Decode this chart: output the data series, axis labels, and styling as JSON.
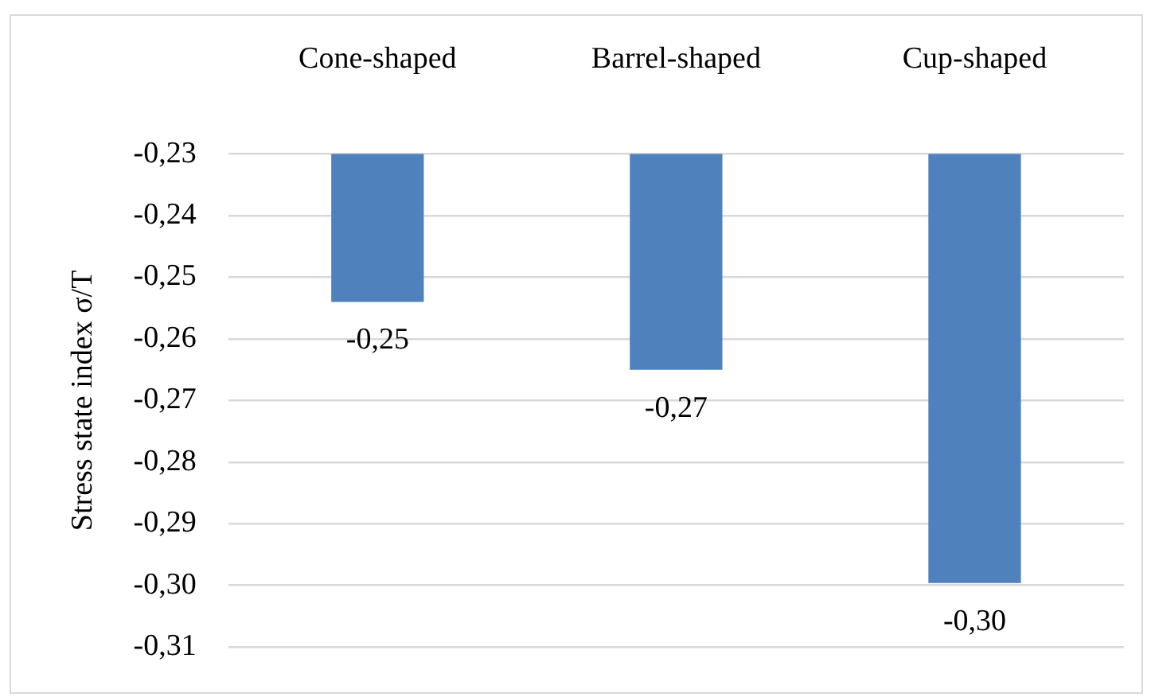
{
  "chart_data": {
    "type": "bar",
    "categories": [
      "Cone-shaped",
      "Barrel-shaped",
      "Cup-shaped"
    ],
    "values": [
      -0.254,
      -0.265,
      -0.2996
    ],
    "value_labels": [
      "-0,25",
      "-0,27",
      "-0,30"
    ],
    "color": "#4f81bd",
    "ylabel": "Stress state index σ/T",
    "ylim": [
      -0.31,
      -0.23
    ],
    "yticks": [
      {
        "value": -0.23,
        "label": "-0,23"
      },
      {
        "value": -0.24,
        "label": "-0,24"
      },
      {
        "value": -0.25,
        "label": "-0,25"
      },
      {
        "value": -0.26,
        "label": "-0,26"
      },
      {
        "value": -0.27,
        "label": "-0,27"
      },
      {
        "value": -0.28,
        "label": "-0,28"
      },
      {
        "value": -0.29,
        "label": "-0,29"
      },
      {
        "value": -0.3,
        "label": "-0,30"
      },
      {
        "value": -0.31,
        "label": "-0,31"
      }
    ],
    "grid": "y"
  }
}
